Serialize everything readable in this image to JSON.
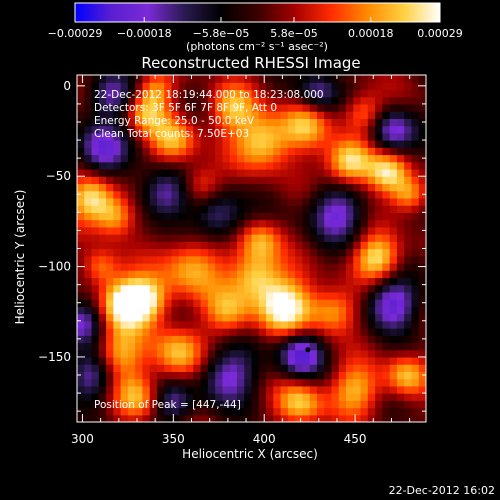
{
  "chart_data": {
    "type": "heatmap",
    "title": "Reconstructed RHESSI Image",
    "xlabel": "Heliocentric X (arcsec)",
    "ylabel": "Heliocentric Y (arcsec)",
    "xlim": [
      297,
      489
    ],
    "ylim": [
      -186,
      6
    ],
    "x_ticks": [
      {
        "value": 300,
        "label": "300"
      },
      {
        "value": 350,
        "label": "350"
      },
      {
        "value": 400,
        "label": "400"
      },
      {
        "value": 450,
        "label": "450"
      }
    ],
    "y_ticks": [
      {
        "value": 0,
        "label": "0"
      },
      {
        "value": -50,
        "label": "−50"
      },
      {
        "value": -100,
        "label": "−100"
      },
      {
        "value": -150,
        "label": "−150"
      }
    ],
    "colorbar": {
      "min": -0.00029,
      "max": 0.00029,
      "unit_label": "(photons cm⁻² s⁻¹ asec⁻²)",
      "ticks": [
        {
          "value": -0.00029,
          "label": "−0.00029"
        },
        {
          "value": -0.00018,
          "label": "−0.00018"
        },
        {
          "value": -5.8e-05,
          "label": "−5.8e−05"
        },
        {
          "value": 5.8e-05,
          "label": "5.8e−05"
        },
        {
          "value": 0.00018,
          "label": "0.00018"
        },
        {
          "value": 0.00029,
          "label": "0.00029"
        }
      ],
      "colors": [
        "#0000ff",
        "#5a1fd0",
        "#7a2ad8",
        "#2a1a50",
        "#000000",
        "#3a0000",
        "#a30000",
        "#ff2a00",
        "#ff8a00",
        "#ffd040",
        "#ffffff"
      ]
    },
    "annotations": [
      "22-Dec-2012 18:19:44.000 to 18:23:08.000",
      "Detectors: 3F 5F 6F 7F 8F 9F, Att 0",
      "Energy Range: 25.0 - 50.0 keV",
      "Clean     Total counts: 7.50E+03"
    ],
    "peak_label": "Position of Peak = [447,-44]",
    "peak": [
      447,
      -44
    ],
    "min_marker": [
      424,
      -146
    ],
    "blobs": [
      {
        "x": 322,
        "y": -120,
        "s": 10,
        "a": 1.5
      },
      {
        "x": 335,
        "y": -118,
        "s": 9,
        "a": 1.2
      },
      {
        "x": 305,
        "y": -62,
        "s": 9,
        "a": 1.3
      },
      {
        "x": 318,
        "y": -72,
        "s": 8,
        "a": 1.0
      },
      {
        "x": 360,
        "y": -100,
        "s": 12,
        "a": 1.0
      },
      {
        "x": 395,
        "y": -105,
        "s": 10,
        "a": 1.2
      },
      {
        "x": 412,
        "y": -122,
        "s": 11,
        "a": 1.5
      },
      {
        "x": 380,
        "y": -125,
        "s": 9,
        "a": 0.9
      },
      {
        "x": 438,
        "y": -125,
        "s": 9,
        "a": 1.0
      },
      {
        "x": 320,
        "y": -148,
        "s": 10,
        "a": 1.0
      },
      {
        "x": 352,
        "y": -148,
        "s": 10,
        "a": 1.1
      },
      {
        "x": 400,
        "y": -30,
        "s": 11,
        "a": 1.3
      },
      {
        "x": 382,
        "y": -12,
        "s": 9,
        "a": 1.0
      },
      {
        "x": 422,
        "y": -22,
        "s": 9,
        "a": 0.9
      },
      {
        "x": 447,
        "y": -42,
        "s": 9,
        "a": 1.5
      },
      {
        "x": 468,
        "y": -48,
        "s": 8,
        "a": 1.2
      },
      {
        "x": 462,
        "y": -95,
        "s": 9,
        "a": 1.3
      },
      {
        "x": 480,
        "y": -60,
        "s": 7,
        "a": 1.0
      },
      {
        "x": 350,
        "y": -30,
        "s": 9,
        "a": 1.0
      },
      {
        "x": 335,
        "y": -15,
        "s": 8,
        "a": 0.9
      },
      {
        "x": 365,
        "y": -55,
        "s": 8,
        "a": 0.8
      },
      {
        "x": 450,
        "y": -168,
        "s": 10,
        "a": 1.0
      },
      {
        "x": 420,
        "y": -175,
        "s": 9,
        "a": 1.1
      },
      {
        "x": 478,
        "y": -160,
        "s": 8,
        "a": 1.0
      },
      {
        "x": 330,
        "y": -172,
        "s": 9,
        "a": 0.9
      },
      {
        "x": 310,
        "y": -100,
        "s": 7,
        "a": 0.8
      },
      {
        "x": 455,
        "y": -15,
        "s": 8,
        "a": 0.9
      },
      {
        "x": 398,
        "y": -85,
        "s": 8,
        "a": 0.9
      },
      {
        "x": 340,
        "y": -2,
        "s": 7,
        "a": 0.8
      },
      {
        "x": 345,
        "y": -60,
        "s": 10,
        "a": -1.1
      },
      {
        "x": 375,
        "y": -72,
        "s": 10,
        "a": -1.0
      },
      {
        "x": 310,
        "y": -35,
        "s": 10,
        "a": -1.2
      },
      {
        "x": 315,
        "y": -5,
        "s": 9,
        "a": -1.0
      },
      {
        "x": 440,
        "y": -70,
        "s": 11,
        "a": -1.1
      },
      {
        "x": 470,
        "y": -25,
        "s": 9,
        "a": -1.2
      },
      {
        "x": 470,
        "y": -120,
        "s": 10,
        "a": -1.3
      },
      {
        "x": 380,
        "y": -160,
        "s": 11,
        "a": -1.1
      },
      {
        "x": 305,
        "y": -160,
        "s": 9,
        "a": -1.0
      },
      {
        "x": 350,
        "y": -175,
        "s": 8,
        "a": -0.9
      },
      {
        "x": 420,
        "y": -148,
        "s": 9,
        "a": -1.4
      },
      {
        "x": 430,
        "y": -3,
        "s": 8,
        "a": -0.9
      },
      {
        "x": 300,
        "y": -130,
        "s": 9,
        "a": -1.1
      }
    ]
  },
  "footer": {
    "timestamp": "22-Dec-2012 16:02"
  }
}
